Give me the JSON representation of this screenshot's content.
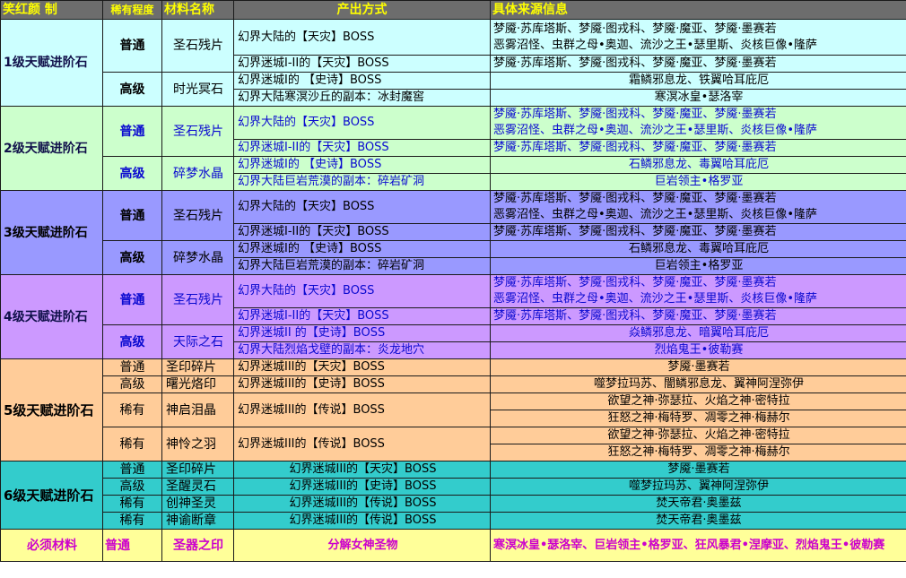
{
  "headers": {
    "col1": "笑红颜 制",
    "col2": "稀有程度",
    "col3": "材料名称",
    "col4": "产出方式",
    "col5": "具体来源信息"
  },
  "tier1": {
    "name": "1级天赋进阶石",
    "r1": {
      "rarity": "普通",
      "material": "圣石残片",
      "m1": "幻界大陆的【天灾】BOSS",
      "s1": "梦魇·苏库塔斯、梦魇·图戎科、梦魇·魔亚、梦魇·墨赛若",
      "s2": "恶雾沼怪、虫群之母•奥迦、流沙之王•瑟里斯、炎核巨像•隆萨",
      "m2": "幻界迷城I-II的【天灾】BOSS",
      "s3": "梦魇·苏库塔斯、梦魇·图戎科、梦魇·魔亚、梦魇·墨赛若"
    },
    "r2": {
      "rarity": "高级",
      "material": "时光冥石",
      "m1": "幻界迷城I的 【史诗】BOSS",
      "s1": "霜鳞邪息龙、铁翼哈耳庇厄",
      "m2": "幻界大陆寒溟沙丘的副本：冰封魔窖",
      "s2": "寒溟冰皇•瑟洛宰"
    }
  },
  "tier2": {
    "name": "2级天赋进阶石",
    "r1": {
      "rarity": "普通",
      "material": "圣石残片",
      "m1": "幻界大陆的【天灾】BOSS",
      "s1": "梦魇·苏库塔斯、梦魇·图戎科、梦魇·魔亚、梦魇·墨赛若",
      "s2": "恶雾沼怪、虫群之母•奥迦、流沙之王•瑟里斯、炎核巨像•隆萨",
      "m2": "幻界迷城I-II的【天灾】BOSS",
      "s3": "梦魇·苏库塔斯、梦魇·图戎科、梦魇·魔亚、梦魇·墨赛若"
    },
    "r2": {
      "rarity": "高级",
      "material": "碎梦水晶",
      "m1": "幻界迷城I的 【史诗】BOSS",
      "s1": "石鳞邪息龙、毒翼哈耳庇厄",
      "m2": "幻界大陆巨岩荒漠的副本：碎岩矿洞",
      "s2": "巨岩领主•格罗亚"
    }
  },
  "tier3": {
    "name": "3级天赋进阶石",
    "r1": {
      "rarity": "普通",
      "material": "圣石残片",
      "m1": "幻界大陆的【天灾】BOSS",
      "s1": "梦魇·苏库塔斯、梦魇·图戎科、梦魇·魔亚、梦魇·墨赛若",
      "s2": "恶雾沼怪、虫群之母•奥迦、流沙之王•瑟里斯、炎核巨像•隆萨",
      "m2": "幻界迷城I-II的【天灾】BOSS",
      "s3": "梦魇·苏库塔斯、梦魇·图戎科、梦魇·魔亚、梦魇·墨赛若"
    },
    "r2": {
      "rarity": "高级",
      "material": "碎梦水晶",
      "m1": "幻界迷城I的 【史诗】BOSS",
      "s1": "石鳞邪息龙、毒翼哈耳庇厄",
      "m2": "幻界大陆巨岩荒漠的副本：碎岩矿洞",
      "s2": "巨岩领主•格罗亚"
    }
  },
  "tier4": {
    "name": "4级天赋进阶石",
    "r1": {
      "rarity": "普通",
      "material": "圣石残片",
      "m1": "幻界大陆的【天灾】BOSS",
      "s1": "梦魇·苏库塔斯、梦魇·图戎科、梦魇·魔亚、梦魇·墨赛若",
      "s2": "恶雾沼怪、虫群之母•奥迦、流沙之王•瑟里斯、炎核巨像•隆萨",
      "m2": "幻界迷城I-II的【天灾】BOSS",
      "s3": "梦魇·苏库塔斯、梦魇·图戎科、梦魇·魔亚、梦魇·墨赛若"
    },
    "r2": {
      "rarity": "高级",
      "material": "天际之石",
      "m1": "幻界迷城II 的【史诗】BOSS",
      "s1": "焱鳞邪息龙、暗翼哈耳庇厄",
      "m2": "幻界大陆烈焰戈壁的副本：炎龙地穴",
      "s2": "烈焰鬼王•彼勒赛"
    }
  },
  "tier5": {
    "name": "5级天赋进阶石",
    "r1": {
      "rarity": "普通",
      "material": "圣印碎片",
      "m1": "幻界迷城III的【天灾】BOSS",
      "s1": "梦魇·墨赛若"
    },
    "r2": {
      "rarity": "高级",
      "material": "曙光烙印",
      "m1": "幻界迷城III的【史诗】BOSS",
      "s1": "噬梦拉玛苏、闇鳞邪息龙、翼神阿涅弥伊"
    },
    "r3": {
      "rarity": "稀有",
      "material": "神启泪晶",
      "m1": "幻界迷城III的【传说】BOSS",
      "s1": "欲望之神·弥瑟拉、火焰之神·密特拉",
      "s2": "狂怒之神·梅特罗、凋零之神·梅赫尔"
    },
    "r4": {
      "rarity": "稀有",
      "material": "神怜之羽",
      "m1": "幻界迷城III的【传说】BOSS",
      "s1": "欲望之神·弥瑟拉、火焰之神·密特拉",
      "s2": "狂怒之神·梅特罗、凋零之神·梅赫尔"
    }
  },
  "tier6": {
    "name": "6级天赋进阶石",
    "r1": {
      "rarity": "普通",
      "material": "圣印碎片",
      "m1": "幻界迷城III的【天灾】BOSS",
      "s1": "梦魇·墨赛若"
    },
    "r2": {
      "rarity": "高级",
      "material": "圣醒灵石",
      "m1": "幻界迷城III的【史诗】BOSS",
      "s1": "噬梦拉玛苏、翼神阿涅弥伊"
    },
    "r3": {
      "rarity": "稀有",
      "material": "创神圣灵",
      "m1": "幻界迷城III的【传说】BOSS",
      "s1": "焚天帝君·奥墨兹"
    },
    "r4": {
      "rarity": "稀有",
      "material": "神谕断章",
      "m1": "幻界迷城III的【传说】BOSS",
      "s1": "焚天帝君·奥墨兹"
    }
  },
  "required": {
    "name": "必须材料",
    "rarity": "普通",
    "material": "圣器之印",
    "method": "分解女神圣物",
    "source": "寒溟冰皇•瑟洛宰、巨岩领主•格罗亚、狂风暴君•涅摩亚、烈焰鬼王•彼勒赛"
  }
}
